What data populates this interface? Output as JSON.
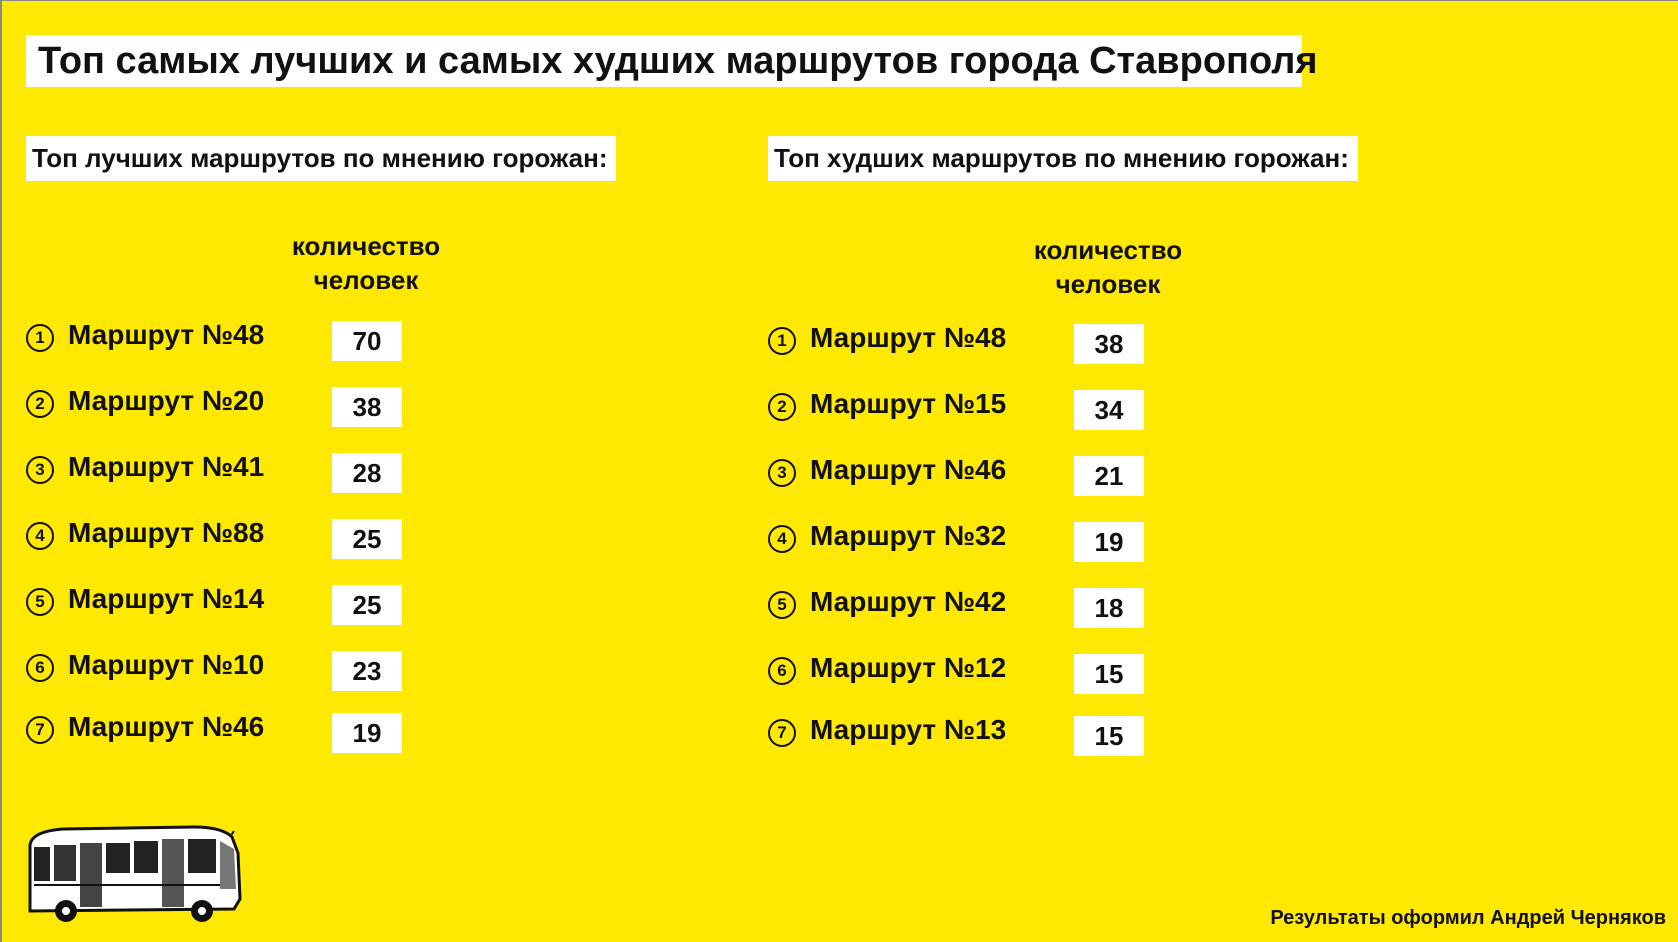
{
  "title": "Топ самых лучших и самых худших маршрутов города Ставрополя",
  "best": {
    "label": "Топ лучших маршрутов по мнению горожан:",
    "column_header_line1": "количество",
    "column_header_line2": "человек",
    "rows": [
      {
        "rank": "1",
        "route": "Маршрут №48",
        "count": "70"
      },
      {
        "rank": "2",
        "route": "Маршрут №20",
        "count": "38"
      },
      {
        "rank": "3",
        "route": "Маршрут №41",
        "count": "28"
      },
      {
        "rank": "4",
        "route": "Маршрут №88",
        "count": "25"
      },
      {
        "rank": "5",
        "route": "Маршрут №14",
        "count": "25"
      },
      {
        "rank": "6",
        "route": "Маршрут №10",
        "count": "23"
      },
      {
        "rank": "7",
        "route": "Маршрут №46",
        "count": "19"
      }
    ]
  },
  "worst": {
    "label": "Топ худших маршрутов по мнению горожан:",
    "column_header_line1": "количество",
    "column_header_line2": "человек",
    "rows": [
      {
        "rank": "1",
        "route": "Маршрут №48",
        "count": "38"
      },
      {
        "rank": "2",
        "route": "Маршрут №15",
        "count": "34"
      },
      {
        "rank": "3",
        "route": "Маршрут №46",
        "count": "21"
      },
      {
        "rank": "4",
        "route": "Маршрут №32",
        "count": "19"
      },
      {
        "rank": "5",
        "route": "Маршрут №42",
        "count": "18"
      },
      {
        "rank": "6",
        "route": "Маршрут №12",
        "count": "15"
      },
      {
        "rank": "7",
        "route": "Маршрут №13",
        "count": "15"
      }
    ]
  },
  "credit": "Результаты оформил Андрей Черняков",
  "icons": {
    "bus": "bus-icon"
  },
  "colors": {
    "background": "#ffe900",
    "box": "#ffffff",
    "text": "#111111"
  }
}
